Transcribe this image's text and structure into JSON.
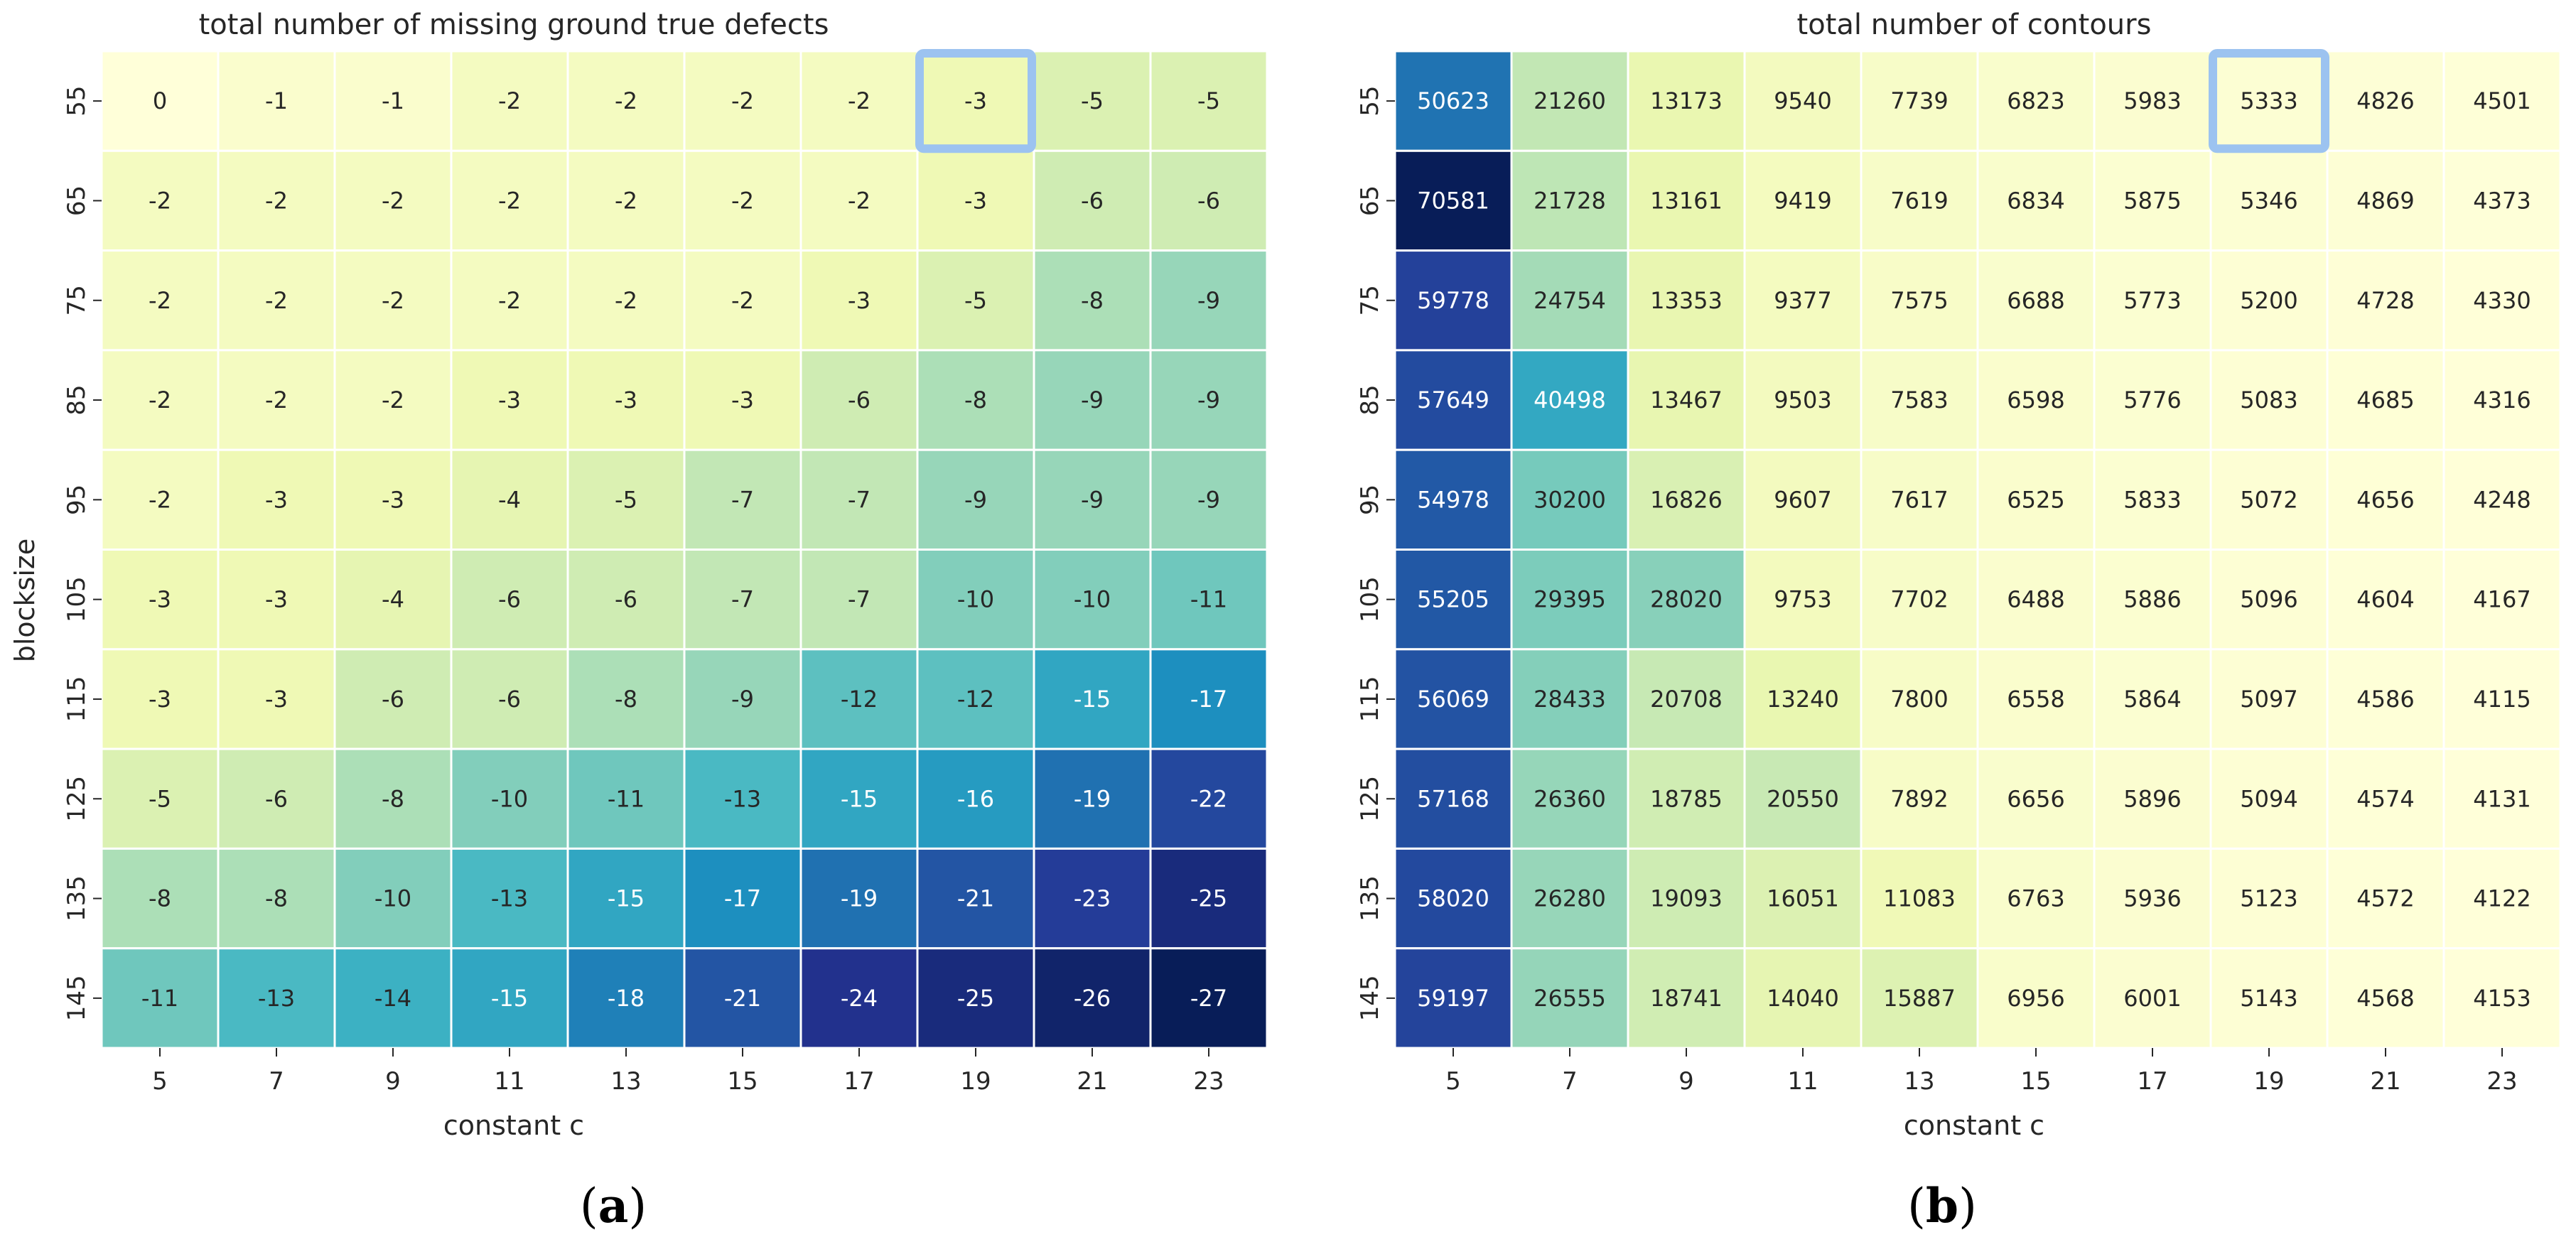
{
  "chart_data": [
    {
      "type": "heatmap",
      "title": "total number of missing ground true defects",
      "xlabel": "constant c",
      "ylabel": "blocksize",
      "x": [
        "5",
        "7",
        "9",
        "11",
        "13",
        "15",
        "17",
        "19",
        "21",
        "23"
      ],
      "y": [
        "55",
        "65",
        "75",
        "85",
        "95",
        "105",
        "115",
        "125",
        "135",
        "145"
      ],
      "values": [
        [
          0,
          -1,
          -1,
          -2,
          -2,
          -2,
          -2,
          -3,
          -5,
          -5
        ],
        [
          -2,
          -2,
          -2,
          -2,
          -2,
          -2,
          -2,
          -3,
          -6,
          -6
        ],
        [
          -2,
          -2,
          -2,
          -2,
          -2,
          -2,
          -3,
          -5,
          -8,
          -9
        ],
        [
          -2,
          -2,
          -2,
          -3,
          -3,
          -3,
          -6,
          -8,
          -9,
          -9
        ],
        [
          -2,
          -3,
          -3,
          -4,
          -5,
          -7,
          -7,
          -9,
          -9,
          -9
        ],
        [
          -3,
          -3,
          -4,
          -6,
          -6,
          -7,
          -7,
          -10,
          -10,
          -11
        ],
        [
          -3,
          -3,
          -6,
          -6,
          -8,
          -9,
          -12,
          -12,
          -15,
          -17
        ],
        [
          -5,
          -6,
          -8,
          -10,
          -11,
          -13,
          -15,
          -16,
          -19,
          -22
        ],
        [
          -8,
          -8,
          -10,
          -13,
          -15,
          -17,
          -19,
          -21,
          -23,
          -25
        ],
        [
          -11,
          -13,
          -14,
          -15,
          -18,
          -21,
          -24,
          -25,
          -26,
          -27
        ]
      ],
      "colormap": "YlGnBu",
      "color_range": [
        -27,
        0
      ],
      "reversed": true,
      "grid_lines": "white",
      "highlight": {
        "row": 0,
        "col": 7,
        "color": "#9cc3f0"
      },
      "panel_label": "(a)"
    },
    {
      "type": "heatmap",
      "title": "total number of contours",
      "xlabel": "constant c",
      "ylabel": "",
      "x": [
        "5",
        "7",
        "9",
        "11",
        "13",
        "15",
        "17",
        "19",
        "21",
        "23"
      ],
      "y": [
        "55",
        "65",
        "75",
        "85",
        "95",
        "105",
        "115",
        "125",
        "135",
        "145"
      ],
      "values": [
        [
          50623,
          21260,
          13173,
          9540,
          7739,
          6823,
          5983,
          5333,
          4826,
          4501
        ],
        [
          70581,
          21728,
          13161,
          9419,
          7619,
          6834,
          5875,
          5346,
          4869,
          4373
        ],
        [
          59778,
          24754,
          13353,
          9377,
          7575,
          6688,
          5773,
          5200,
          4728,
          4330
        ],
        [
          57649,
          40498,
          13467,
          9503,
          7583,
          6598,
          5776,
          5083,
          4685,
          4316
        ],
        [
          54978,
          30200,
          16826,
          9607,
          7617,
          6525,
          5833,
          5072,
          4656,
          4248
        ],
        [
          55205,
          29395,
          28020,
          9753,
          7702,
          6488,
          5886,
          5096,
          4604,
          4167
        ],
        [
          56069,
          28433,
          20708,
          13240,
          7800,
          6558,
          5864,
          5097,
          4586,
          4115
        ],
        [
          57168,
          26360,
          18785,
          20550,
          7892,
          6656,
          5896,
          5094,
          4574,
          4131
        ],
        [
          58020,
          26280,
          19093,
          16051,
          11083,
          6763,
          5936,
          5123,
          4572,
          4122
        ],
        [
          59197,
          26555,
          18741,
          14040,
          15887,
          6956,
          6001,
          5143,
          4568,
          4153
        ]
      ],
      "colormap": "YlGnBu",
      "color_range": [
        4115,
        70581
      ],
      "reversed": false,
      "grid_lines": "white",
      "highlight": {
        "row": 0,
        "col": 7,
        "color": "#9cc3f0"
      },
      "panel_label": "(b)"
    }
  ]
}
